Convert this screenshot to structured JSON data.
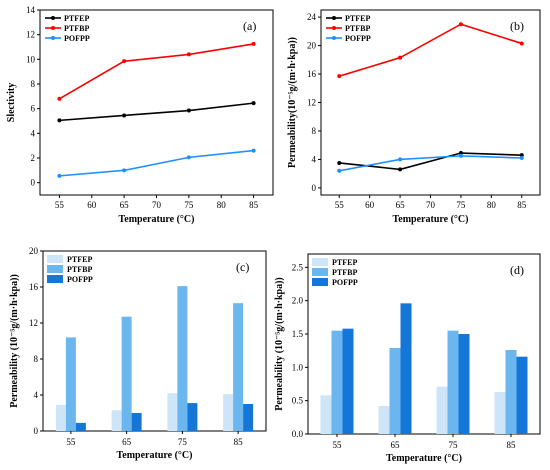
{
  "colors": {
    "PTFEP_line": "#000000",
    "PTFBP_line": "#ff0000",
    "POFPP_line": "#1e90ff",
    "PTFEP_bar": "#cde5f7",
    "PTFBP_bar": "#6bb6ee",
    "POFPP_bar": "#1477d8"
  },
  "chart_data": [
    {
      "panel": "(a)",
      "type": "line",
      "x": [
        55,
        65,
        75,
        85
      ],
      "xlim": [
        52,
        88
      ],
      "xticks": [
        "55",
        "60",
        "65",
        "70",
        "75",
        "80",
        "85"
      ],
      "xtick_values": [
        55,
        60,
        65,
        70,
        75,
        80,
        85
      ],
      "ylim": [
        -1,
        14
      ],
      "yticks": [
        "0",
        "2",
        "4",
        "6",
        "8",
        "10",
        "12",
        "14"
      ],
      "ytick_values": [
        0,
        2,
        4,
        6,
        8,
        10,
        12,
        14
      ],
      "xlabel": "Temperature (°C)",
      "ylabel": "Slectivity",
      "legend_position": "top-left",
      "series": [
        {
          "name": "PTFEP",
          "values": [
            5.05,
            5.45,
            5.85,
            6.45
          ]
        },
        {
          "name": "PTFBP",
          "values": [
            6.8,
            9.85,
            10.4,
            11.25
          ]
        },
        {
          "name": "POFPP",
          "values": [
            0.55,
            1.0,
            2.05,
            2.6
          ]
        }
      ]
    },
    {
      "panel": "(b)",
      "type": "line",
      "x": [
        55,
        65,
        75,
        85
      ],
      "xlim": [
        52,
        88
      ],
      "xticks": [
        "55",
        "60",
        "65",
        "70",
        "75",
        "80",
        "85"
      ],
      "xtick_values": [
        55,
        60,
        65,
        70,
        75,
        80,
        85
      ],
      "ylim": [
        -1,
        25
      ],
      "yticks": [
        "0",
        "4",
        "8",
        "12",
        "16",
        "20",
        "24"
      ],
      "ytick_values": [
        0,
        4,
        8,
        12,
        16,
        20,
        24
      ],
      "xlabel": "Temperature (°C)",
      "ylabel": "Permeability(10⁻⁵g/(m·h·kpa))",
      "legend_position": "top-left",
      "series": [
        {
          "name": "PTFEP",
          "values": [
            3.5,
            2.6,
            4.9,
            4.6
          ]
        },
        {
          "name": "PTFBP",
          "values": [
            15.7,
            18.3,
            23.0,
            20.3
          ]
        },
        {
          "name": "POFPP",
          "values": [
            2.4,
            4.0,
            4.5,
            4.2
          ]
        }
      ]
    },
    {
      "panel": "(c)",
      "type": "bar",
      "categories": [
        "55",
        "65",
        "75",
        "85"
      ],
      "ylim": [
        0,
        20
      ],
      "yticks": [
        "0",
        "4",
        "8",
        "12",
        "16",
        "20"
      ],
      "ytick_values": [
        0,
        4,
        8,
        12,
        16,
        20
      ],
      "xlabel": "Temperature (°C)",
      "ylabel": "Permeability (10⁻⁵g/(m·h·kpa))",
      "legend_position": "top-left",
      "series": [
        {
          "name": "PTFEP",
          "values": [
            2.9,
            2.3,
            4.2,
            4.1
          ]
        },
        {
          "name": "PTFBP",
          "values": [
            10.4,
            12.7,
            16.1,
            14.2
          ]
        },
        {
          "name": "POFPP",
          "values": [
            0.9,
            2.0,
            3.1,
            3.0
          ]
        }
      ]
    },
    {
      "panel": "(d)",
      "type": "bar",
      "categories": [
        "55",
        "65",
        "75",
        "85"
      ],
      "ylim": [
        0,
        2.7
      ],
      "yticks": [
        "0.0",
        "0.5",
        "1.0",
        "1.5",
        "2.0",
        "2.5"
      ],
      "ytick_values": [
        0,
        0.5,
        1.0,
        1.5,
        2.0,
        2.5
      ],
      "xlabel": "Temperature (°C)",
      "ylabel": "Permeability (10⁻⁵g/(m·h·kpa))",
      "legend_position": "top-left",
      "series": [
        {
          "name": "PTFEP",
          "values": [
            0.58,
            0.42,
            0.71,
            0.63
          ]
        },
        {
          "name": "PTFBP",
          "values": [
            1.55,
            1.29,
            1.55,
            1.26
          ]
        },
        {
          "name": "POFPP",
          "values": [
            1.58,
            1.96,
            1.5,
            1.16
          ]
        }
      ]
    }
  ]
}
